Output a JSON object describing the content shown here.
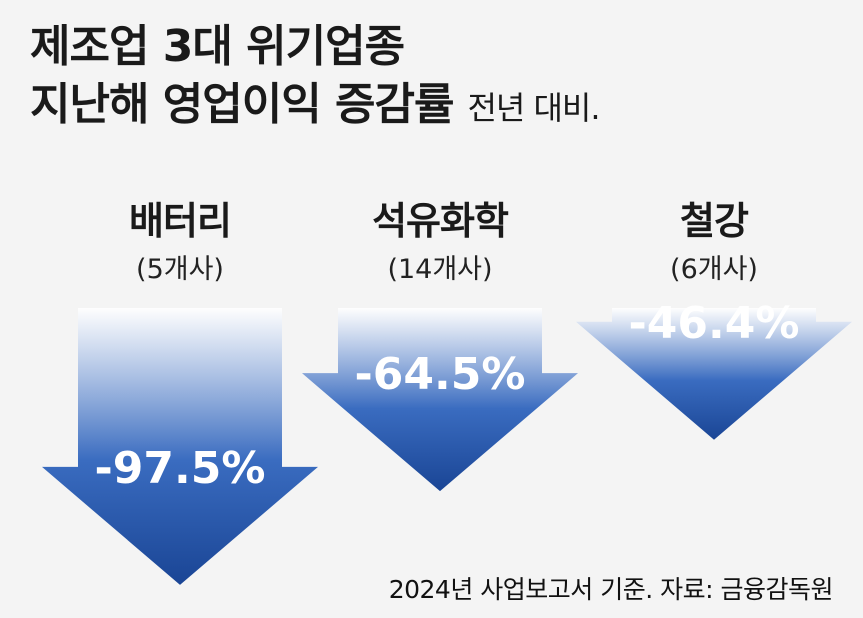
{
  "title": {
    "line1": "제조업 3대 위기업종",
    "line2": "지난해 영업이익 증감률",
    "subtitle": "전년 대비."
  },
  "chart_data": {
    "type": "bar",
    "title": "제조업 3대 위기업종 지난해 영업이익 증감률",
    "subtitle": "전년 대비.",
    "categories": [
      "배터리",
      "석유화학",
      "철강"
    ],
    "category_notes": [
      "(5개사)",
      "(14개사)",
      "(6개사)"
    ],
    "values": [
      -97.5,
      -64.5,
      -46.4
    ],
    "value_labels": [
      "-97.5%",
      "-64.5%",
      "-46.4%"
    ],
    "unit": "%",
    "ylim": [
      -100,
      0
    ],
    "grid": false,
    "legend": "none",
    "color": "#1e4b9b"
  },
  "source": "2024년 사업보고서 기준. 자료: 금융감독원"
}
